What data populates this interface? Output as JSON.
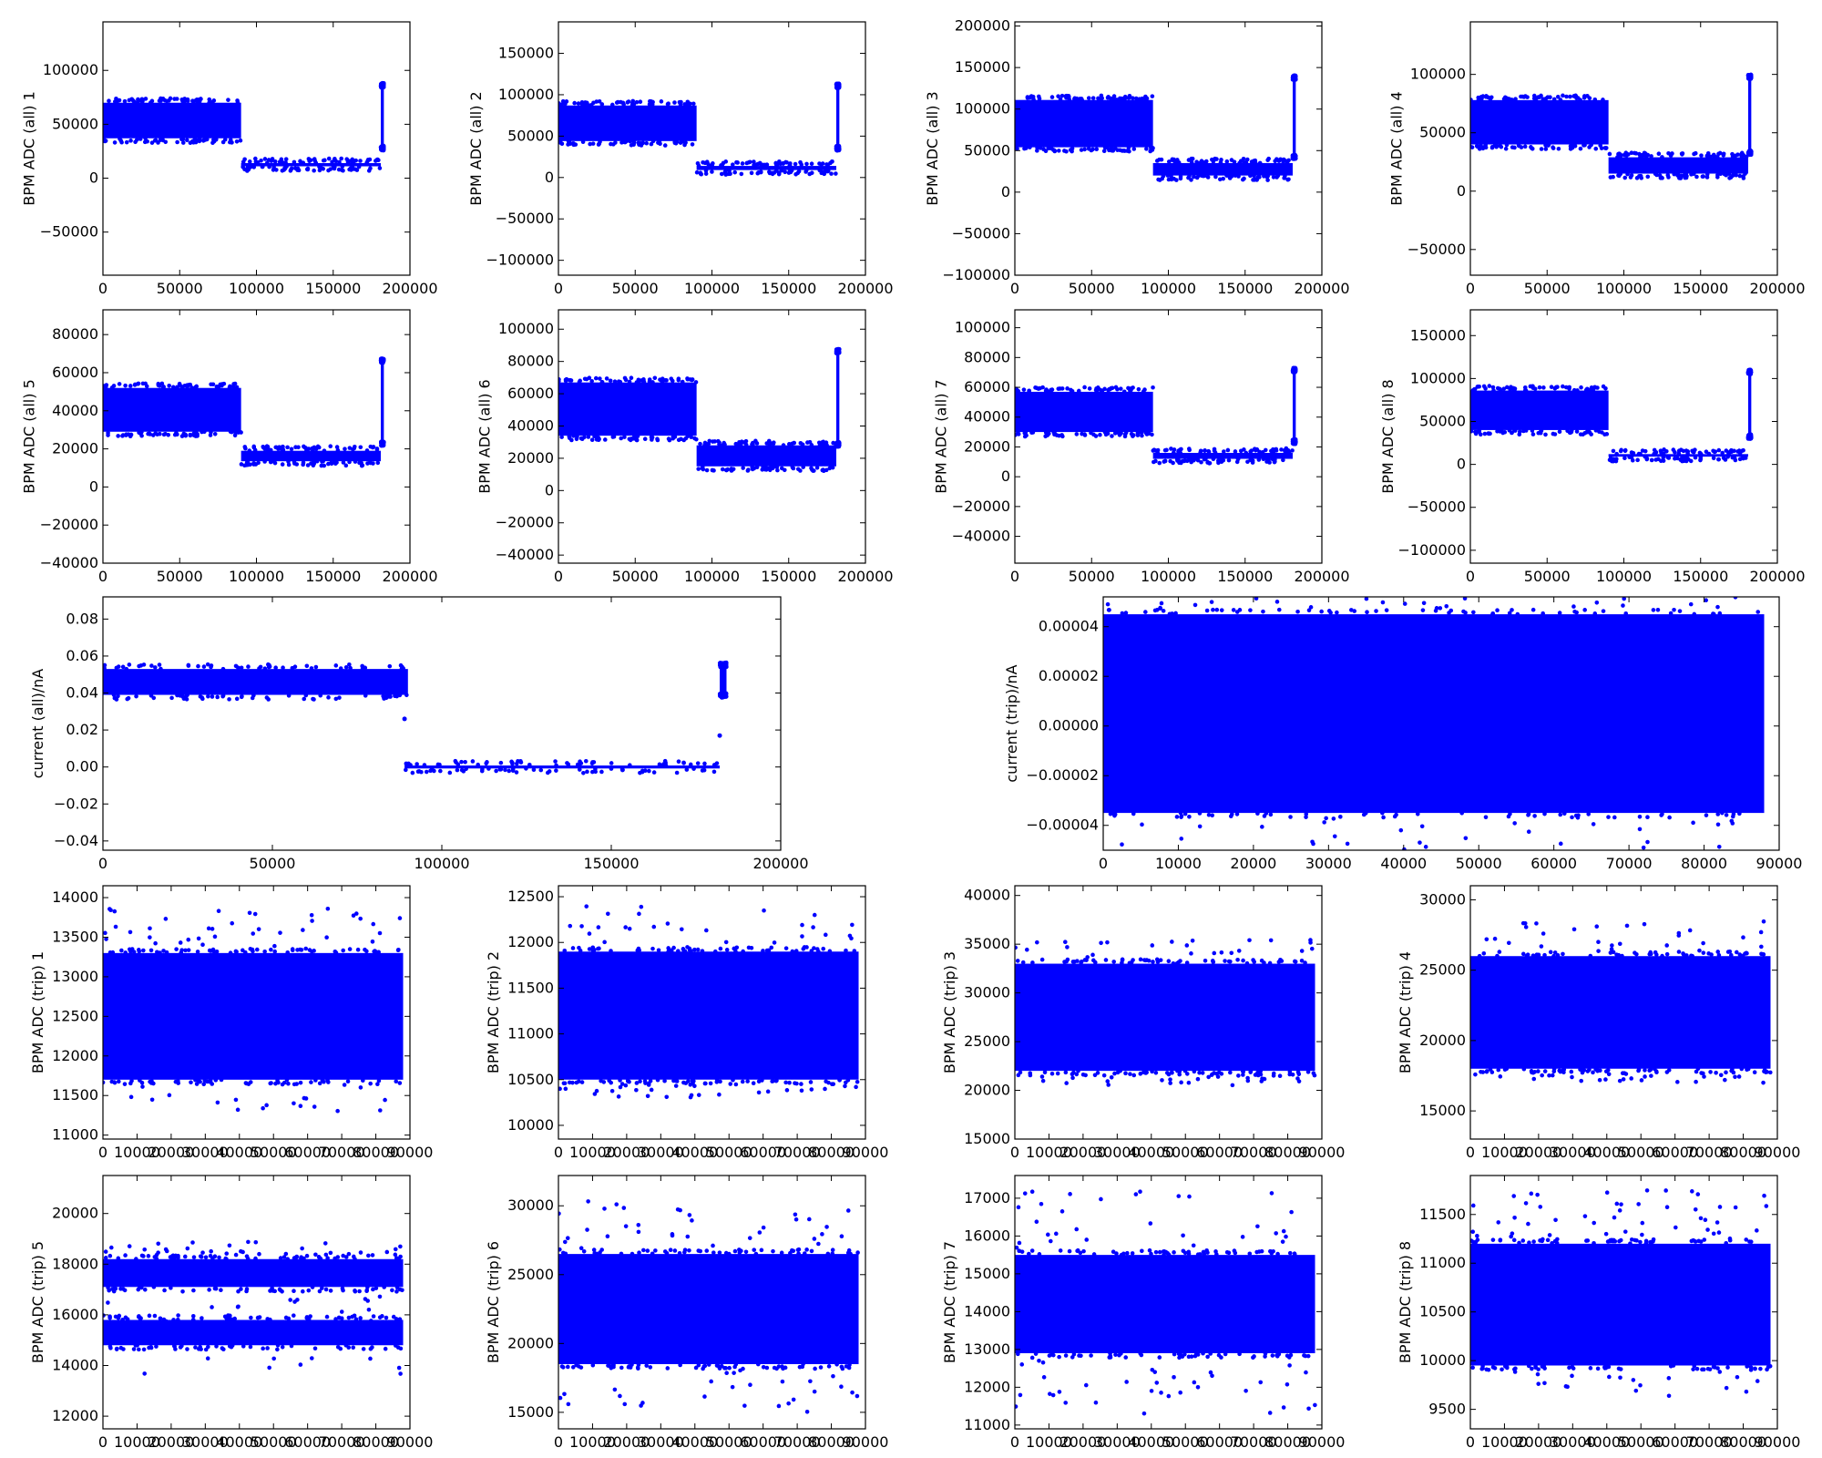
{
  "chart_data": [
    {
      "type": "scatter",
      "ylabel": "BPM ADC (all) 1",
      "xlim": [
        0,
        200000
      ],
      "ylim": [
        -90000,
        145000
      ],
      "xticks": [
        0,
        50000,
        100000,
        150000,
        200000
      ],
      "xtick_labels": [
        "0",
        "50000",
        "100000",
        "150000",
        "200000"
      ],
      "yticks": [
        -50000,
        0,
        50000,
        100000
      ],
      "ytick_labels": [
        "−50000",
        "0",
        "50000",
        "100000"
      ],
      "grid": false,
      "legend": "none",
      "segments": [
        {
          "x_start": 0,
          "x_end": 90000,
          "y_low": 37000,
          "y_high": 70000
        },
        {
          "x_start": 90000,
          "x_end": 181000,
          "y_low": 11000,
          "y_high": 14000
        },
        {
          "x_start": 181000,
          "x_end": 183000,
          "y_low": 30000,
          "y_high": 84000
        }
      ]
    },
    {
      "type": "scatter",
      "ylabel": "BPM ADC (all) 2",
      "xlim": [
        0,
        200000
      ],
      "ylim": [
        -118000,
        188000
      ],
      "xticks": [
        0,
        50000,
        100000,
        150000,
        200000
      ],
      "xtick_labels": [
        "0",
        "50000",
        "100000",
        "150000",
        "200000"
      ],
      "yticks": [
        -100000,
        -50000,
        0,
        50000,
        100000,
        150000
      ],
      "ytick_labels": [
        "−100000",
        "−50000",
        "0",
        "50000",
        "100000",
        "150000"
      ],
      "grid": false,
      "legend": "none",
      "segments": [
        {
          "x_start": 0,
          "x_end": 90000,
          "y_low": 44000,
          "y_high": 87000
        },
        {
          "x_start": 90000,
          "x_end": 181000,
          "y_low": 9000,
          "y_high": 14000
        },
        {
          "x_start": 181000,
          "x_end": 183000,
          "y_low": 38000,
          "y_high": 108000
        }
      ]
    },
    {
      "type": "scatter",
      "ylabel": "BPM ADC (all) 3",
      "xlim": [
        0,
        200000
      ],
      "ylim": [
        -100000,
        205000
      ],
      "xticks": [
        0,
        50000,
        100000,
        150000,
        200000
      ],
      "xtick_labels": [
        "0",
        "50000",
        "100000",
        "150000",
        "200000"
      ],
      "yticks": [
        -100000,
        -50000,
        0,
        50000,
        100000,
        150000,
        200000
      ],
      "ytick_labels": [
        "−100000",
        "−50000",
        "0",
        "50000",
        "100000",
        "150000",
        "200000"
      ],
      "grid": false,
      "legend": "none",
      "segments": [
        {
          "x_start": 0,
          "x_end": 90000,
          "y_low": 54000,
          "y_high": 111000
        },
        {
          "x_start": 90000,
          "x_end": 181000,
          "y_low": 20000,
          "y_high": 35000
        },
        {
          "x_start": 181000,
          "x_end": 183000,
          "y_low": 45000,
          "y_high": 135000
        }
      ]
    },
    {
      "type": "scatter",
      "ylabel": "BPM ADC (all) 4",
      "xlim": [
        0,
        200000
      ],
      "ylim": [
        -72000,
        145000
      ],
      "xticks": [
        0,
        50000,
        100000,
        150000,
        200000
      ],
      "xtick_labels": [
        "0",
        "50000",
        "100000",
        "150000",
        "200000"
      ],
      "yticks": [
        -50000,
        0,
        50000,
        100000
      ],
      "ytick_labels": [
        "−50000",
        "0",
        "50000",
        "100000"
      ],
      "grid": false,
      "legend": "none",
      "segments": [
        {
          "x_start": 0,
          "x_end": 90000,
          "y_low": 40000,
          "y_high": 78000
        },
        {
          "x_start": 90000,
          "x_end": 181000,
          "y_low": 15000,
          "y_high": 29000
        },
        {
          "x_start": 181000,
          "x_end": 183000,
          "y_low": 35000,
          "y_high": 96000
        }
      ]
    },
    {
      "type": "scatter",
      "ylabel": "BPM ADC (all) 5",
      "xlim": [
        0,
        200000
      ],
      "ylim": [
        -40000,
        93000
      ],
      "xticks": [
        0,
        50000,
        100000,
        150000,
        200000
      ],
      "xtick_labels": [
        "0",
        "50000",
        "100000",
        "150000",
        "200000"
      ],
      "yticks": [
        -40000,
        -20000,
        0,
        20000,
        40000,
        60000,
        80000
      ],
      "ytick_labels": [
        "−40000",
        "−20000",
        "0",
        "20000",
        "40000",
        "60000",
        "80000"
      ],
      "grid": false,
      "legend": "none",
      "segments": [
        {
          "x_start": 0,
          "x_end": 90000,
          "y_low": 29000,
          "y_high": 52000
        },
        {
          "x_start": 90000,
          "x_end": 181000,
          "y_low": 13500,
          "y_high": 19000
        },
        {
          "x_start": 181000,
          "x_end": 183000,
          "y_low": 24000,
          "y_high": 65000
        }
      ]
    },
    {
      "type": "scatter",
      "ylabel": "BPM ADC (all) 6",
      "xlim": [
        0,
        200000
      ],
      "ylim": [
        -45000,
        112000
      ],
      "xticks": [
        0,
        50000,
        100000,
        150000,
        200000
      ],
      "xtick_labels": [
        "0",
        "50000",
        "100000",
        "150000",
        "200000"
      ],
      "yticks": [
        -40000,
        -20000,
        0,
        20000,
        40000,
        60000,
        80000,
        100000
      ],
      "ytick_labels": [
        "−40000",
        "−20000",
        "0",
        "20000",
        "40000",
        "60000",
        "80000",
        "100000"
      ],
      "grid": false,
      "legend": "none",
      "segments": [
        {
          "x_start": 0,
          "x_end": 90000,
          "y_low": 34000,
          "y_high": 67000
        },
        {
          "x_start": 90000,
          "x_end": 181000,
          "y_low": 15000,
          "y_high": 28000
        },
        {
          "x_start": 181000,
          "x_end": 183000,
          "y_low": 30000,
          "y_high": 85000
        }
      ]
    },
    {
      "type": "scatter",
      "ylabel": "BPM ADC (all) 7",
      "xlim": [
        0,
        200000
      ],
      "ylim": [
        -58000,
        112000
      ],
      "xticks": [
        0,
        50000,
        100000,
        150000,
        200000
      ],
      "xtick_labels": [
        "0",
        "50000",
        "100000",
        "150000",
        "200000"
      ],
      "yticks": [
        -40000,
        -20000,
        0,
        20000,
        40000,
        60000,
        80000,
        100000
      ],
      "ytick_labels": [
        "−40000",
        "−20000",
        "0",
        "20000",
        "40000",
        "60000",
        "80000",
        "100000"
      ],
      "grid": false,
      "legend": "none",
      "segments": [
        {
          "x_start": 0,
          "x_end": 90000,
          "y_low": 30000,
          "y_high": 57000
        },
        {
          "x_start": 90000,
          "x_end": 181000,
          "y_low": 12000,
          "y_high": 16000
        },
        {
          "x_start": 181000,
          "x_end": 183000,
          "y_low": 25000,
          "y_high": 70000
        }
      ]
    },
    {
      "type": "scatter",
      "ylabel": "BPM ADC (all) 8",
      "xlim": [
        0,
        200000
      ],
      "ylim": [
        -115000,
        180000
      ],
      "xticks": [
        0,
        50000,
        100000,
        150000,
        200000
      ],
      "xtick_labels": [
        "0",
        "50000",
        "100000",
        "150000",
        "200000"
      ],
      "yticks": [
        -100000,
        -50000,
        0,
        50000,
        100000,
        150000
      ],
      "ytick_labels": [
        "−100000",
        "−50000",
        "0",
        "50000",
        "100000",
        "150000"
      ],
      "grid": false,
      "legend": "none",
      "segments": [
        {
          "x_start": 0,
          "x_end": 90000,
          "y_low": 40000,
          "y_high": 86000
        },
        {
          "x_start": 90000,
          "x_end": 181000,
          "y_low": 9000,
          "y_high": 12000
        },
        {
          "x_start": 181000,
          "x_end": 183000,
          "y_low": 35000,
          "y_high": 105000
        }
      ]
    },
    {
      "type": "scatter",
      "ylabel": "current (all)/nA",
      "xlim": [
        0,
        200000
      ],
      "ylim": [
        -0.045,
        0.092
      ],
      "xticks": [
        0,
        50000,
        100000,
        150000,
        200000
      ],
      "xtick_labels": [
        "0",
        "50000",
        "100000",
        "150000",
        "200000"
      ],
      "yticks": [
        -0.04,
        -0.02,
        0,
        0.02,
        0.04,
        0.06,
        0.08
      ],
      "ytick_labels": [
        "−0.04",
        "−0.02",
        "0.00",
        "0.02",
        "0.04",
        "0.06",
        "0.08"
      ],
      "grid": false,
      "legend": "none",
      "segments": [
        {
          "x_start": 0,
          "x_end": 90000,
          "y_low": 0.039,
          "y_high": 0.053
        },
        {
          "x_start": 89000,
          "x_end": 182000,
          "y_low": -0.0008,
          "y_high": 0.0008
        },
        {
          "x_start": 182000,
          "x_end": 184000,
          "y_low": 0.04,
          "y_high": 0.054
        }
      ],
      "points": [
        [
          89000,
          0.026
        ],
        [
          182000,
          0.017
        ]
      ]
    },
    {
      "type": "scatter",
      "ylabel": "current (trip)/nA",
      "xlim": [
        0,
        90000
      ],
      "ylim": [
        -5e-05,
        5.2e-05
      ],
      "xticks": [
        0,
        10000,
        20000,
        30000,
        40000,
        50000,
        60000,
        70000,
        80000,
        90000
      ],
      "xtick_labels": [
        "0",
        "10000",
        "20000",
        "30000",
        "40000",
        "50000",
        "60000",
        "70000",
        "80000",
        "90000"
      ],
      "yticks": [
        -4e-05,
        -2e-05,
        0,
        2e-05,
        4e-05
      ],
      "ytick_labels": [
        "−0.00004",
        "−0.00002",
        "0.00000",
        "0.00002",
        "0.00004"
      ],
      "grid": false,
      "legend": "none",
      "segments": [
        {
          "x_start": 0,
          "x_end": 88000,
          "y_low": -3.5e-05,
          "y_high": 4.5e-05
        }
      ],
      "outlier_low": -5e-05,
      "outlier_high": 5.2e-05
    },
    {
      "type": "scatter",
      "ylabel": "BPM ADC (trip) 1",
      "xlim": [
        0,
        90000
      ],
      "ylim": [
        10950,
        14150
      ],
      "xticks": [
        0,
        10000,
        20000,
        30000,
        40000,
        50000,
        60000,
        70000,
        80000,
        90000
      ],
      "xtick_labels": [
        "0",
        "10000",
        "20000",
        "30000",
        "40000",
        "50000",
        "60000",
        "70000",
        "80000",
        "90000"
      ],
      "yticks": [
        11000,
        11500,
        12000,
        12500,
        13000,
        13500,
        14000
      ],
      "ytick_labels": [
        "11000",
        "11500",
        "12000",
        "12500",
        "13000",
        "13500",
        "14000"
      ],
      "grid": false,
      "legend": "none",
      "segments": [
        {
          "x_start": 0,
          "x_end": 88000,
          "y_low": 11700,
          "y_high": 13300
        }
      ],
      "outlier_low": 11300,
      "outlier_high": 13900
    },
    {
      "type": "scatter",
      "ylabel": "BPM ADC (trip) 2",
      "xlim": [
        0,
        90000
      ],
      "ylim": [
        9850,
        12620
      ],
      "xticks": [
        0,
        10000,
        20000,
        30000,
        40000,
        50000,
        60000,
        70000,
        80000,
        90000
      ],
      "xtick_labels": [
        "0",
        "10000",
        "20000",
        "30000",
        "40000",
        "50000",
        "60000",
        "70000",
        "80000",
        "90000"
      ],
      "yticks": [
        10000,
        10500,
        11000,
        11500,
        12000,
        12500
      ],
      "ytick_labels": [
        "10000",
        "10500",
        "11000",
        "11500",
        "12000",
        "12500"
      ],
      "grid": false,
      "legend": "none",
      "segments": [
        {
          "x_start": 0,
          "x_end": 88000,
          "y_low": 10500,
          "y_high": 11900
        }
      ],
      "outlier_low": 10300,
      "outlier_high": 12400
    },
    {
      "type": "scatter",
      "ylabel": "BPM ADC (trip) 3",
      "xlim": [
        0,
        90000
      ],
      "ylim": [
        15000,
        41000
      ],
      "xticks": [
        0,
        10000,
        20000,
        30000,
        40000,
        50000,
        60000,
        70000,
        80000,
        90000
      ],
      "xtick_labels": [
        "0",
        "10000",
        "20000",
        "30000",
        "40000",
        "50000",
        "60000",
        "70000",
        "80000",
        "90000"
      ],
      "yticks": [
        15000,
        20000,
        25000,
        30000,
        35000,
        40000
      ],
      "ytick_labels": [
        "15000",
        "20000",
        "25000",
        "30000",
        "35000",
        "40000"
      ],
      "grid": false,
      "legend": "none",
      "segments": [
        {
          "x_start": 0,
          "x_end": 88000,
          "y_low": 22000,
          "y_high": 33000
        }
      ],
      "outlier_low": 20500,
      "outlier_high": 35500
    },
    {
      "type": "scatter",
      "ylabel": "BPM ADC (trip) 4",
      "xlim": [
        0,
        90000
      ],
      "ylim": [
        13000,
        31000
      ],
      "xticks": [
        0,
        10000,
        20000,
        30000,
        40000,
        50000,
        60000,
        70000,
        80000,
        90000
      ],
      "xtick_labels": [
        "0",
        "10000",
        "20000",
        "30000",
        "40000",
        "50000",
        "60000",
        "70000",
        "80000",
        "90000"
      ],
      "yticks": [
        15000,
        20000,
        25000,
        30000
      ],
      "ytick_labels": [
        "15000",
        "20000",
        "25000",
        "30000"
      ],
      "grid": false,
      "legend": "none",
      "segments": [
        {
          "x_start": 0,
          "x_end": 88000,
          "y_low": 18000,
          "y_high": 26000
        }
      ],
      "outlier_low": 17000,
      "outlier_high": 28500
    },
    {
      "type": "scatter",
      "ylabel": "BPM ADC (trip) 5",
      "xlim": [
        0,
        90000
      ],
      "ylim": [
        11500,
        21500
      ],
      "xticks": [
        0,
        10000,
        20000,
        30000,
        40000,
        50000,
        60000,
        70000,
        80000,
        90000
      ],
      "xtick_labels": [
        "0",
        "10000",
        "20000",
        "30000",
        "40000",
        "50000",
        "60000",
        "70000",
        "80000",
        "90000"
      ],
      "yticks": [
        12000,
        14000,
        16000,
        18000,
        20000
      ],
      "ytick_labels": [
        "12000",
        "14000",
        "16000",
        "18000",
        "20000"
      ],
      "grid": false,
      "legend": "none",
      "segments": [
        {
          "x_start": 0,
          "x_end": 88000,
          "y_low": 17100,
          "y_high": 18200
        },
        {
          "x_start": 0,
          "x_end": 88000,
          "y_low": 14800,
          "y_high": 15800
        }
      ],
      "outlier_low": 13600,
      "outlier_high": 18900
    },
    {
      "type": "scatter",
      "ylabel": "BPM ADC (trip) 6",
      "xlim": [
        0,
        90000
      ],
      "ylim": [
        13800,
        32200
      ],
      "xticks": [
        0,
        10000,
        20000,
        30000,
        40000,
        50000,
        60000,
        70000,
        80000,
        90000
      ],
      "xtick_labels": [
        "0",
        "10000",
        "20000",
        "30000",
        "40000",
        "50000",
        "60000",
        "70000",
        "80000",
        "90000"
      ],
      "yticks": [
        15000,
        20000,
        25000,
        30000
      ],
      "ytick_labels": [
        "15000",
        "20000",
        "25000",
        "30000"
      ],
      "grid": false,
      "legend": "none",
      "segments": [
        {
          "x_start": 0,
          "x_end": 88000,
          "y_low": 18500,
          "y_high": 26500
        }
      ],
      "outlier_low": 15000,
      "outlier_high": 30500
    },
    {
      "type": "scatter",
      "ylabel": "BPM ADC (trip) 7",
      "xlim": [
        0,
        90000
      ],
      "ylim": [
        10900,
        17600
      ],
      "xticks": [
        0,
        10000,
        20000,
        30000,
        40000,
        50000,
        60000,
        70000,
        80000,
        90000
      ],
      "xtick_labels": [
        "0",
        "10000",
        "20000",
        "30000",
        "40000",
        "50000",
        "60000",
        "70000",
        "80000",
        "90000"
      ],
      "yticks": [
        11000,
        12000,
        13000,
        14000,
        15000,
        16000,
        17000
      ],
      "ytick_labels": [
        "11000",
        "12000",
        "13000",
        "14000",
        "15000",
        "16000",
        "17000"
      ],
      "grid": false,
      "legend": "none",
      "segments": [
        {
          "x_start": 0,
          "x_end": 88000,
          "y_low": 12900,
          "y_high": 15500
        }
      ],
      "outlier_low": 11200,
      "outlier_high": 17200
    },
    {
      "type": "scatter",
      "ylabel": "BPM ADC (trip) 8",
      "xlim": [
        0,
        90000
      ],
      "ylim": [
        9300,
        11900
      ],
      "xticks": [
        0,
        10000,
        20000,
        30000,
        40000,
        50000,
        60000,
        70000,
        80000,
        90000
      ],
      "xtick_labels": [
        "0",
        "10000",
        "20000",
        "30000",
        "40000",
        "50000",
        "60000",
        "70000",
        "80000",
        "90000"
      ],
      "yticks": [
        9500,
        10000,
        10500,
        11000,
        11500
      ],
      "ytick_labels": [
        "9500",
        "10000",
        "10500",
        "11000",
        "11500"
      ],
      "grid": false,
      "legend": "none",
      "segments": [
        {
          "x_start": 0,
          "x_end": 88000,
          "y_low": 9950,
          "y_high": 11200
        }
      ],
      "outlier_low": 9600,
      "outlier_high": 11750
    }
  ],
  "colors": {
    "points": "#0000ff",
    "axes": "#000000",
    "background": "#ffffff"
  }
}
